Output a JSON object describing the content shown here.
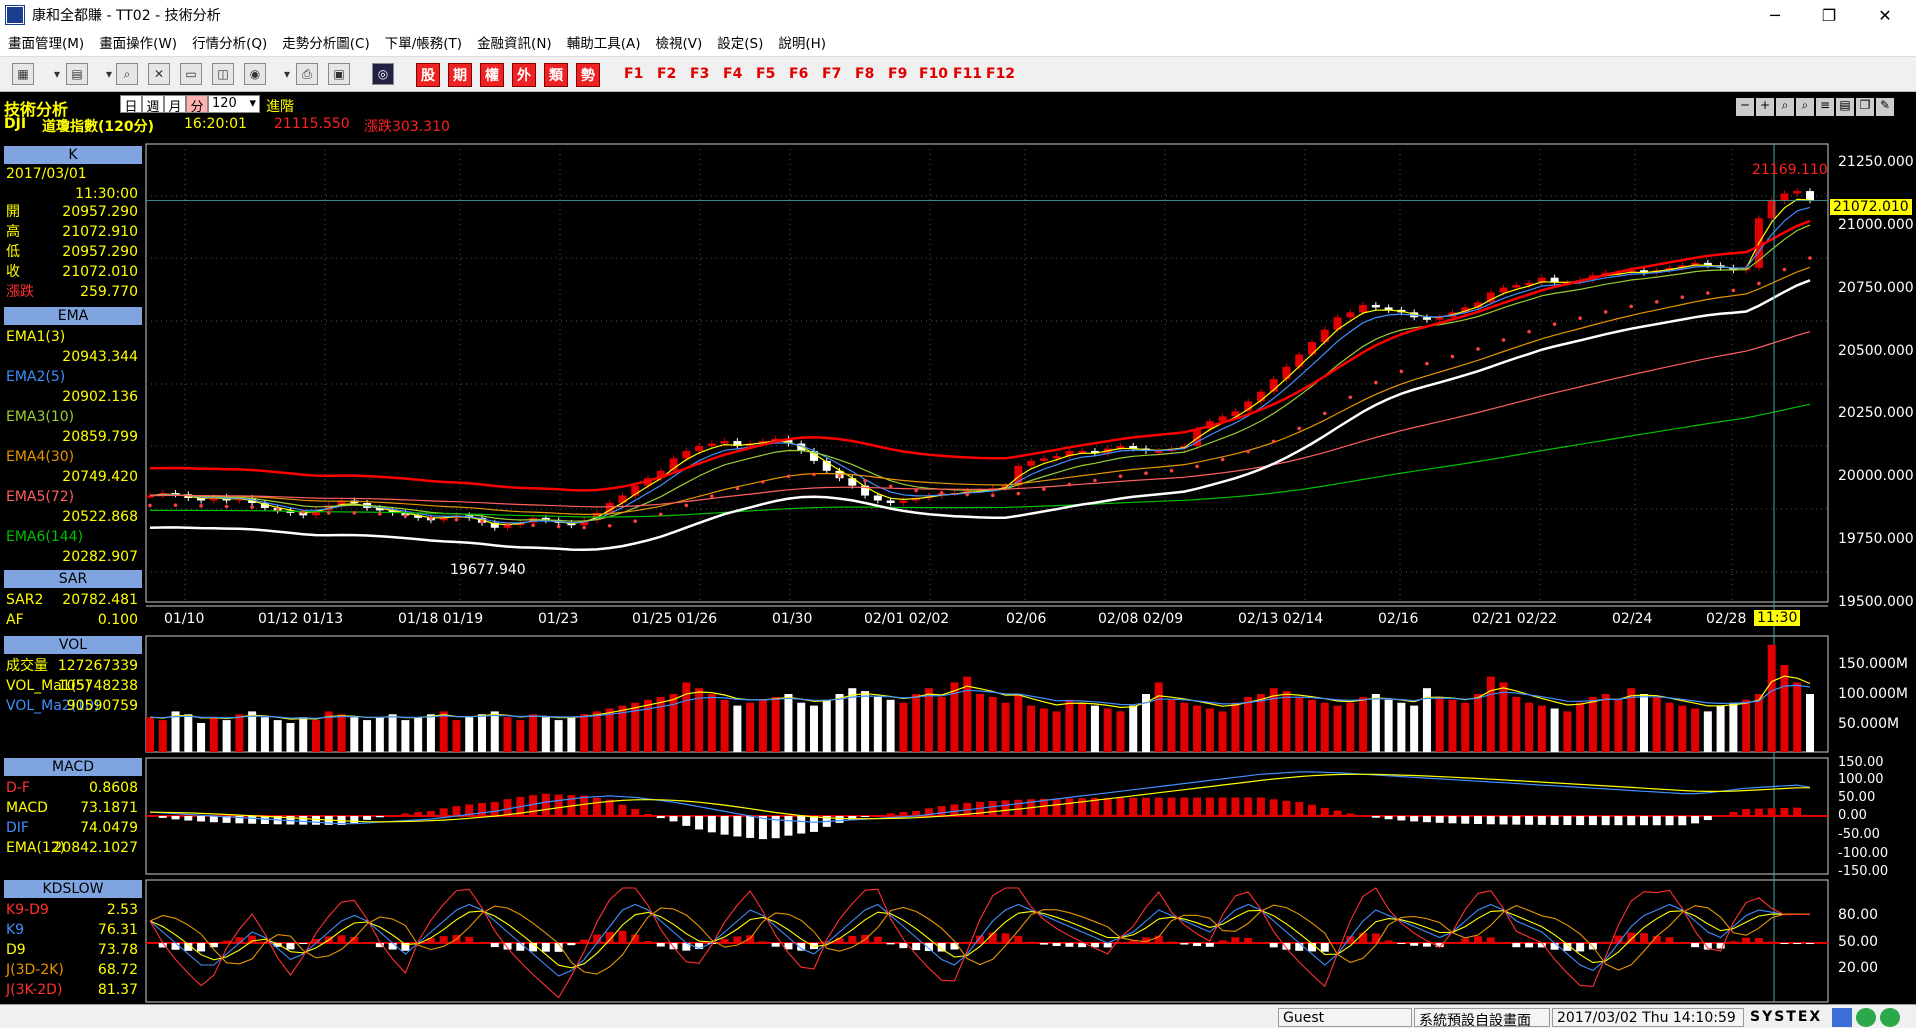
{
  "window": {
    "title": "康和全都賺 - TT02 - 技術分析",
    "minimize": "─",
    "maximize": "❐",
    "close": "✕"
  },
  "menu": [
    "畫面管理(M)",
    "畫面操作(W)",
    "行情分析(Q)",
    "走勢分析圖(C)",
    "下單/帳務(T)",
    "金融資訊(N)",
    "輔助工具(A)",
    "檢視(V)",
    "設定(S)",
    "說明(H)"
  ],
  "toolbar": {
    "red_buttons": [
      "股",
      "期",
      "權",
      "外",
      "類",
      "勢"
    ],
    "fkeys": [
      "F1",
      "F2",
      "F3",
      "F4",
      "F5",
      "F6",
      "F7",
      "F8",
      "F9",
      "F10",
      "F11",
      "F12"
    ]
  },
  "chart_header": {
    "title": "技術分析",
    "periods": [
      "日",
      "週",
      "月",
      "分"
    ],
    "interval": "120",
    "advanced": "進階",
    "symbol": "DJI",
    "name": "道瓊指數(120分)",
    "time": "16:20:01",
    "price": "21115.550",
    "change": "漲跌303.310"
  },
  "colors": {
    "up": "#e00000",
    "down": "#ffffff",
    "ema1": "#ffff00",
    "ema2": "#3f8fff",
    "ema3": "#9acd32",
    "ema4": "#e69500",
    "ema5": "#ff6060",
    "ema6": "#00c000",
    "sar": "#ff4040",
    "boll_up": "#ff0000",
    "boll_dn": "#ffffff",
    "header": "#7fa4e0"
  },
  "panel_k": {
    "title": "K",
    "date": "2017/03/01",
    "time": "11:30:00",
    "rows": [
      {
        "label": "開",
        "value": "20957.290",
        "color": "#ffff00"
      },
      {
        "label": "高",
        "value": "21072.910",
        "color": "#ffff00"
      },
      {
        "label": "低",
        "value": "20957.290",
        "color": "#ffff00"
      },
      {
        "label": "收",
        "value": "21072.010",
        "color": "#ffff00"
      },
      {
        "label": "漲跌",
        "value": "259.770",
        "color": "#ff3030"
      }
    ]
  },
  "panel_ema": {
    "title": "EMA",
    "rows": [
      {
        "label": "EMA1(3)",
        "value": "20943.344",
        "color": "#ffff00"
      },
      {
        "label": "EMA2(5)",
        "value": "20902.136",
        "color": "#3f8fff"
      },
      {
        "label": "EMA3(10)",
        "value": "20859.799",
        "color": "#9acd32"
      },
      {
        "label": "EMA4(30)",
        "value": "20749.420",
        "color": "#e69500"
      },
      {
        "label": "EMA5(72)",
        "value": "20522.868",
        "color": "#ff6060"
      },
      {
        "label": "EMA6(144)",
        "value": "20282.907",
        "color": "#00c000"
      }
    ]
  },
  "panel_sar": {
    "title": "SAR",
    "rows": [
      {
        "label": "SAR2",
        "value": "20782.481",
        "color": "#ffff00"
      },
      {
        "label": "AF",
        "value": "0.100",
        "color": "#ffff00"
      }
    ]
  },
  "panel_vol": {
    "title": "VOL",
    "rows": [
      {
        "label": "成交量",
        "value": "127267339",
        "color": "#ffff00"
      },
      {
        "label": "VOL_Ma1(5)",
        "value": "105748238",
        "color": "#ffff00"
      },
      {
        "label": "VOL_Ma2(10)",
        "value": "90590759",
        "color": "#3f8fff"
      }
    ]
  },
  "panel_macd": {
    "title": "MACD",
    "rows": [
      {
        "label": "D-F",
        "value": "0.8608",
        "color": "#ff3030"
      },
      {
        "label": "MACD",
        "value": "73.1871",
        "color": "#ffff00"
      },
      {
        "label": "DIF",
        "value": "74.0479",
        "color": "#3f8fff"
      },
      {
        "label": "EMA(12)",
        "value": "20842.1027",
        "color": "#ffff00"
      }
    ]
  },
  "panel_kd": {
    "title": "KDSLOW",
    "rows": [
      {
        "label": "K9-D9",
        "value": "2.53",
        "color": "#ff3030"
      },
      {
        "label": "K9",
        "value": "76.31",
        "color": "#3f8fff"
      },
      {
        "label": "D9",
        "value": "73.78",
        "color": "#ffff00"
      },
      {
        "label": "J(3D-2K)",
        "value": "68.72",
        "color": "#e69500"
      },
      {
        "label": "J(3K-2D)",
        "value": "81.37",
        "color": "#ff3030"
      }
    ]
  },
  "price_axis": [
    "21250.000",
    "21000.000",
    "20750.000",
    "20500.000",
    "20250.000",
    "20000.000",
    "19750.000",
    "19500.000"
  ],
  "price_current": "21072.010",
  "price_high_label": "21169.110",
  "price_low_label": "19677.940",
  "vol_axis": [
    "150.000M",
    "100.000M",
    "50.000M"
  ],
  "macd_axis": [
    "150.00",
    "100.00",
    "50.00",
    "0.00",
    "-50.00",
    "-100.00",
    "-150.00"
  ],
  "kd_axis": [
    "80.00",
    "50.00",
    "20.00"
  ],
  "date_axis": [
    "01/10",
    "01/12 01/13",
    "01/18 01/19",
    "01/23",
    "01/25 01/26",
    "01/30",
    "02/01 02/02",
    "02/06",
    "02/08 02/09",
    "02/13 02/14",
    "02/16",
    "02/21 02/22",
    "02/24",
    "02/28"
  ],
  "cursor_time": "11:30",
  "status": {
    "user": "Guest",
    "layout": "系統預設自設畫面",
    "datetime": "2017/03/02 Thu 14:10:59",
    "brand": "SYSTEX"
  },
  "chart_data": {
    "type": "candlestick",
    "ylim": [
      19450,
      21300
    ],
    "close": [
      19880,
      19890,
      19885,
      19870,
      19860,
      19875,
      19860,
      19870,
      19850,
      19830,
      19820,
      19810,
      19800,
      19820,
      19840,
      19860,
      19850,
      19830,
      19820,
      19810,
      19800,
      19790,
      19780,
      19790,
      19800,
      19790,
      19770,
      19750,
      19760,
      19770,
      19790,
      19780,
      19770,
      19760,
      19780,
      19810,
      19850,
      19880,
      19920,
      19950,
      19980,
      20030,
      20060,
      20080,
      20090,
      20100,
      20080,
      20090,
      20100,
      20110,
      20090,
      20060,
      20020,
      19980,
      19950,
      19920,
      19880,
      19860,
      19850,
      19860,
      19870,
      19880,
      19890,
      19890,
      19900,
      19900,
      19910,
      19920,
      20000,
      20020,
      20030,
      20040,
      20060,
      20060,
      20050,
      20070,
      20080,
      20070,
      20060,
      20060,
      20070,
      20080,
      20150,
      20180,
      20200,
      20220,
      20260,
      20300,
      20350,
      20400,
      20450,
      20500,
      20550,
      20600,
      20620,
      20650,
      20640,
      20630,
      20620,
      20600,
      20590,
      20600,
      20620,
      20640,
      20660,
      20700,
      20720,
      20730,
      20740,
      20760,
      20740,
      20740,
      20750,
      20770,
      20780,
      20780,
      20790,
      20780,
      20790,
      20800,
      20810,
      20820,
      20810,
      20800,
      20790,
      20800,
      21000,
      21070,
      21100,
      21110,
      21072
    ],
    "volume_m": [
      60,
      55,
      70,
      65,
      50,
      60,
      55,
      65,
      70,
      60,
      55,
      50,
      60,
      55,
      70,
      65,
      60,
      55,
      60,
      65,
      55,
      60,
      65,
      70,
      55,
      60,
      65,
      70,
      60,
      55,
      65,
      60,
      55,
      60,
      65,
      70,
      75,
      80,
      85,
      90,
      95,
      100,
      120,
      110,
      100,
      90,
      80,
      85,
      90,
      95,
      100,
      85,
      80,
      90,
      100,
      110,
      105,
      95,
      90,
      85,
      100,
      110,
      95,
      120,
      130,
      100,
      95,
      85,
      100,
      80,
      75,
      70,
      90,
      85,
      80,
      75,
      70,
      80,
      100,
      120,
      90,
      85,
      80,
      75,
      70,
      85,
      95,
      100,
      110,
      105,
      95,
      90,
      85,
      80,
      85,
      95,
      100,
      90,
      85,
      80,
      110,
      95,
      90,
      85,
      100,
      130,
      120,
      95,
      85,
      80,
      75,
      70,
      85,
      95,
      100,
      90,
      110,
      100,
      95,
      85,
      80,
      75,
      70,
      80,
      85,
      90,
      100,
      185,
      150,
      120,
      100
    ],
    "macd_dif": [
      10,
      8,
      6,
      4,
      2,
      0,
      -2,
      -4,
      -6,
      -8,
      -10,
      -12,
      -14,
      -16,
      -18,
      -20,
      -20,
      -18,
      -16,
      -14,
      -12,
      -10,
      -8,
      -4,
      0,
      4,
      8,
      12,
      18,
      24,
      30,
      36,
      40,
      44,
      48,
      50,
      52,
      50,
      48,
      44,
      40,
      36,
      30,
      24,
      18,
      12,
      6,
      0,
      -6,
      -10,
      -12,
      -14,
      -16,
      -14,
      -12,
      -10,
      -8,
      -6,
      -4,
      -2,
      0,
      4,
      8,
      12,
      16,
      20,
      24,
      28,
      32,
      36,
      40,
      44,
      48,
      52,
      56,
      60,
      64,
      68,
      72,
      76,
      80,
      84,
      88,
      92,
      96,
      100,
      104,
      108,
      110,
      112,
      114,
      114,
      113,
      112,
      110,
      108,
      106,
      104,
      102,
      100,
      98,
      96,
      94,
      92,
      90,
      88,
      86,
      84,
      82,
      80,
      78,
      76,
      74,
      72,
      70,
      68,
      66,
      64,
      62,
      60,
      58,
      58,
      60,
      64,
      68,
      72,
      74,
      76,
      78,
      80,
      74
    ],
    "kd_k": [
      70,
      60,
      50,
      40,
      30,
      30,
      40,
      50,
      60,
      55,
      45,
      35,
      40,
      50,
      60,
      70,
      75,
      70,
      60,
      50,
      40,
      50,
      60,
      70,
      80,
      85,
      80,
      70,
      60,
      50,
      40,
      30,
      20,
      25,
      35,
      50,
      65,
      80,
      85,
      80,
      70,
      60,
      50,
      45,
      50,
      60,
      70,
      80,
      75,
      65,
      55,
      45,
      40,
      50,
      60,
      70,
      80,
      85,
      75,
      65,
      55,
      45,
      35,
      30,
      40,
      55,
      70,
      80,
      85,
      80,
      75,
      70,
      65,
      60,
      55,
      50,
      55,
      60,
      70,
      80,
      75,
      70,
      65,
      60,
      70,
      80,
      85,
      80,
      70,
      60,
      50,
      40,
      30,
      40,
      55,
      70,
      80,
      75,
      70,
      65,
      60,
      55,
      60,
      70,
      80,
      85,
      80,
      70,
      65,
      60,
      50,
      40,
      30,
      25,
      35,
      50,
      65,
      75,
      80,
      85,
      80,
      70,
      60,
      55,
      65,
      75,
      80,
      78,
      76,
      76,
      76
    ]
  }
}
